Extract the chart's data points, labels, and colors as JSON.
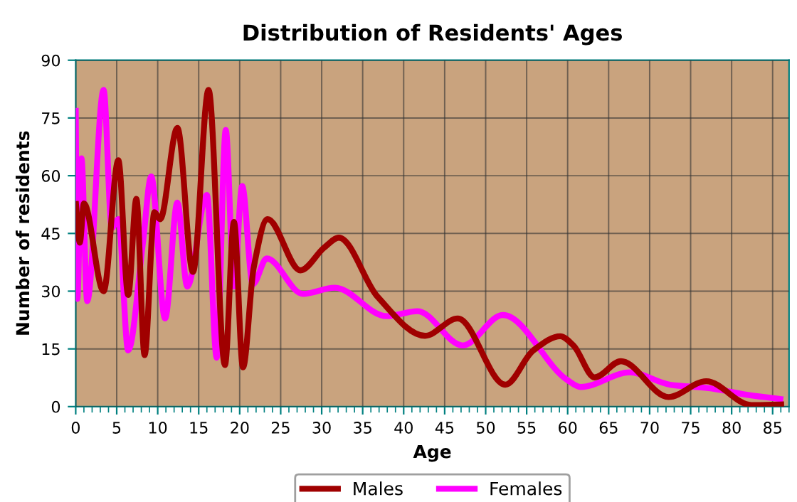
{
  "chart_data": {
    "type": "line",
    "title": "Distribution of Residents' Ages",
    "xlabel": "Age",
    "ylabel": "Number of residents",
    "xlim": [
      0,
      87
    ],
    "xticks": [
      0,
      5,
      10,
      15,
      20,
      25,
      30,
      35,
      40,
      45,
      50,
      55,
      60,
      65,
      70,
      75,
      80,
      85
    ],
    "ylim": [
      0,
      90
    ],
    "yticks": [
      0,
      15,
      30,
      45,
      60,
      75,
      90
    ],
    "grid": true,
    "legend": "bottom",
    "marker": "none",
    "line_style": "solid",
    "series": [
      {
        "name": "Males",
        "color": "#a00000",
        "x": [
          0,
          0.5,
          1,
          3.4,
          5.2,
          6.4,
          7.4,
          8.4,
          9.6,
          10.3,
          12.4,
          14.3,
          16.2,
          18.2,
          19.3,
          20.4,
          21.7,
          23.4,
          27.4,
          30.3,
          32.1,
          36.8,
          42.6,
          46.6,
          52.4,
          55.8,
          59.1,
          60.7,
          63.3,
          66.5,
          72.3,
          76.9,
          82.4,
          86.4
        ],
        "values": [
          53.4,
          42.6,
          52.8,
          30,
          64,
          29,
          54,
          13.4,
          50.5,
          48.7,
          72.4,
          35,
          82.3,
          10.8,
          48,
          10.2,
          36,
          48.7,
          35.4,
          41.3,
          43.9,
          28.6,
          18.4,
          22.9,
          5.7,
          14.6,
          18.3,
          15.9,
          7.6,
          11.8,
          2.5,
          6.6,
          0.4,
          0.6
        ]
      },
      {
        "name": "Females",
        "color": "#ff00ff",
        "x": [
          0,
          0.2,
          0.7,
          1.4,
          3.4,
          4.4,
          5.2,
          6.4,
          8.2,
          9.2,
          10.9,
          12.4,
          13.6,
          16,
          17.2,
          18.3,
          19.3,
          20.3,
          21.6,
          23.3,
          27.7,
          31.6,
          37.9,
          41.7,
          47.2,
          52.1,
          59.9,
          61.6,
          67.6,
          72.5,
          77.2,
          82.4,
          86.3
        ],
        "values": [
          77.6,
          28,
          64.5,
          27.4,
          82.3,
          46.4,
          48.7,
          14.6,
          42.6,
          59.8,
          22.9,
          53,
          31.2,
          55,
          12.7,
          71.9,
          31.2,
          57.3,
          31.8,
          38.5,
          29.3,
          30.9,
          23.5,
          24.8,
          15.9,
          23.8,
          7,
          5.1,
          8.9,
          5.7,
          4.8,
          2.9,
          1.9
        ]
      }
    ]
  }
}
